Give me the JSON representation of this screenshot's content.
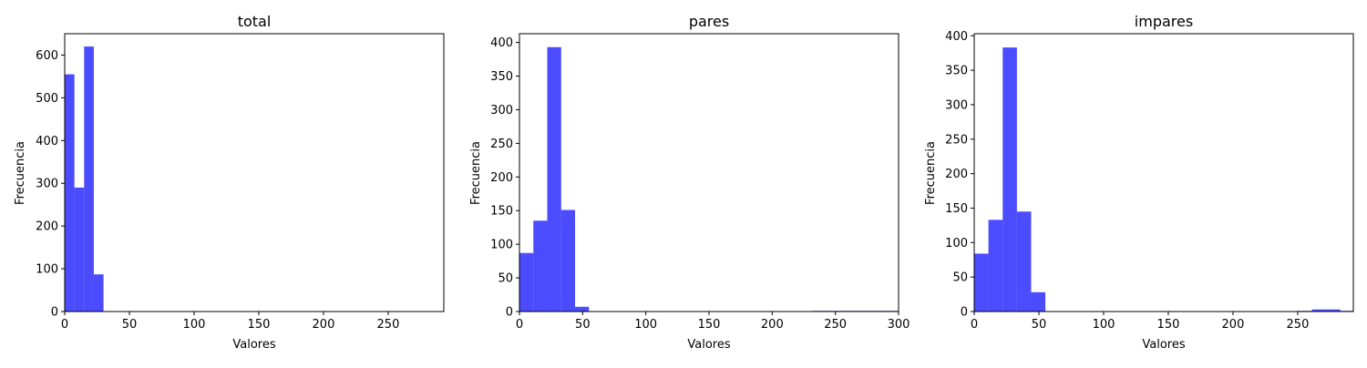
{
  "figure": {
    "background": "#ffffff"
  },
  "chart_data": [
    {
      "type": "bar",
      "title": "total",
      "xlabel": "Valores",
      "ylabel": "Frecuencia",
      "xlim": [
        0,
        293
      ],
      "ylim": [
        0,
        650
      ],
      "xticks": [
        0,
        50,
        100,
        150,
        200,
        250
      ],
      "yticks": [
        0,
        100,
        200,
        300,
        400,
        500,
        600
      ],
      "bar_color": "#0000ff",
      "bar_opacity": 0.7,
      "bins": [
        {
          "x0": 0,
          "x1": 7.5,
          "value": 555
        },
        {
          "x0": 7.5,
          "x1": 15,
          "value": 290
        },
        {
          "x0": 15,
          "x1": 22.5,
          "value": 620
        },
        {
          "x0": 22.5,
          "x1": 30,
          "value": 87
        },
        {
          "x0": 233,
          "x1": 240.5,
          "value": 1
        },
        {
          "x0": 255.5,
          "x1": 263,
          "value": 1
        },
        {
          "x0": 263,
          "x1": 270.5,
          "value": 1
        },
        {
          "x0": 270.5,
          "x1": 278,
          "value": 1
        },
        {
          "x0": 285.5,
          "x1": 293,
          "value": 1
        }
      ]
    },
    {
      "type": "bar",
      "title": "pares",
      "xlabel": "Valores",
      "ylabel": "Frecuencia",
      "xlim": [
        0,
        300
      ],
      "ylim": [
        0,
        413
      ],
      "xticks": [
        0,
        50,
        100,
        150,
        200,
        250,
        300
      ],
      "yticks": [
        0,
        50,
        100,
        150,
        200,
        250,
        300,
        350,
        400
      ],
      "bar_color": "#0000ff",
      "bar_opacity": 0.7,
      "bins": [
        {
          "x0": 0,
          "x1": 11,
          "value": 87
        },
        {
          "x0": 11,
          "x1": 22,
          "value": 135
        },
        {
          "x0": 22,
          "x1": 33,
          "value": 393
        },
        {
          "x0": 33,
          "x1": 44,
          "value": 151
        },
        {
          "x0": 44,
          "x1": 55,
          "value": 7
        },
        {
          "x0": 232,
          "x1": 300,
          "value": 1
        }
      ]
    },
    {
      "type": "bar",
      "title": "impares",
      "xlabel": "Valores",
      "ylabel": "Frecuencia",
      "xlim": [
        0,
        293
      ],
      "ylim": [
        0,
        403
      ],
      "xticks": [
        0,
        50,
        100,
        150,
        200,
        250
      ],
      "yticks": [
        0,
        50,
        100,
        150,
        200,
        250,
        300,
        350,
        400
      ],
      "bar_color": "#0000ff",
      "bar_opacity": 0.7,
      "bins": [
        {
          "x0": 0,
          "x1": 11,
          "value": 84
        },
        {
          "x0": 11,
          "x1": 22,
          "value": 133
        },
        {
          "x0": 22,
          "x1": 33,
          "value": 383
        },
        {
          "x0": 33,
          "x1": 44,
          "value": 145
        },
        {
          "x0": 44,
          "x1": 55,
          "value": 28
        },
        {
          "x0": 250,
          "x1": 261,
          "value": 1
        },
        {
          "x0": 261,
          "x1": 283,
          "value": 3
        },
        {
          "x0": 283,
          "x1": 293,
          "value": 1
        }
      ]
    }
  ]
}
